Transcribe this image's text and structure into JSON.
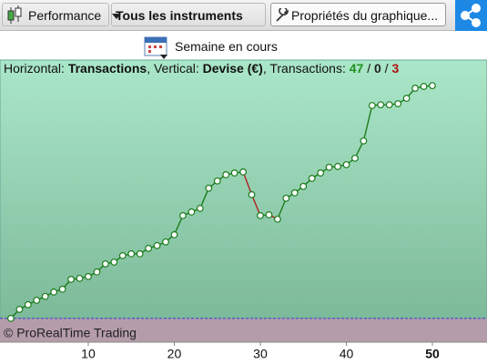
{
  "toolbar": {
    "performance": "Performance",
    "instruments": "Tous les instruments",
    "properties": "Propriétés du graphique..."
  },
  "period": "Semaine en cours",
  "chart_data": {
    "type": "line",
    "info": [
      "Horizontal: ",
      "Transactions",
      ", Vertical: ",
      "Devise (€)",
      ", Transactions: ",
      "47",
      " / ",
      "0",
      " / ",
      "3"
    ],
    "watermark": "© ProRealTime Trading",
    "x": [
      1,
      2,
      3,
      4,
      5,
      6,
      7,
      8,
      9,
      10,
      11,
      12,
      13,
      14,
      15,
      16,
      17,
      18,
      19,
      20,
      21,
      22,
      23,
      24,
      25,
      26,
      27,
      28,
      29,
      30,
      31,
      32,
      33,
      34,
      35,
      36,
      37,
      38,
      39,
      40,
      41,
      42,
      43,
      44,
      45,
      46,
      47,
      48,
      49,
      50
    ],
    "series": [
      {
        "up_color": "#1c7c1c",
        "down_color": "#b02020",
        "values": [
          0,
          3.5,
          5.3,
          7.0,
          8.5,
          10.2,
          11.3,
          15.1,
          15.5,
          16.2,
          18.0,
          21.1,
          21.8,
          24.3,
          25.0,
          25.0,
          27.1,
          28.2,
          29.6,
          32.4,
          39.8,
          41.2,
          42.6,
          50.4,
          53.2,
          55.6,
          56.3,
          56.7,
          47.9,
          39.8,
          40.1,
          38.4,
          46.5,
          48.6,
          51.1,
          54.2,
          56.3,
          58.5,
          58.8,
          59.5,
          62.0,
          68.7,
          82.4,
          82.7,
          82.7,
          83.1,
          85.2,
          89.1,
          89.8,
          90.1
        ]
      }
    ],
    "xlim": [
      -0.26,
      56.35
    ],
    "xticks": [
      10,
      20,
      30,
      40,
      50
    ],
    "ylim": [
      -9.2,
      100
    ]
  }
}
